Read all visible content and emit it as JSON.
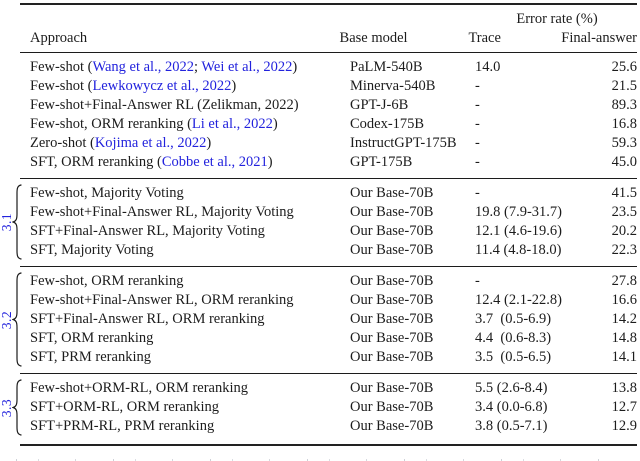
{
  "colors": {
    "link_blue": "#2222dd",
    "text": "#1c1c1c",
    "rule": "#222222"
  },
  "header": {
    "error_rate_label": "Error rate (%)",
    "columns": {
      "approach": "Approach",
      "base_model": "Base model",
      "trace": "Trace",
      "final_answer": "Final-answer"
    }
  },
  "table": {
    "groups": [
      {
        "label": null,
        "rows": [
          {
            "approach": [
              {
                "t": "Few-shot ("
              },
              {
                "t": "Wang et al., 2022",
                "link": true
              },
              {
                "t": "; "
              },
              {
                "t": "Wei et al., 2022",
                "link": true
              },
              {
                "t": ")"
              }
            ],
            "base": "PaLM-540B",
            "trace": "14.0",
            "final": "25.6"
          },
          {
            "approach": [
              {
                "t": "Few-shot ("
              },
              {
                "t": "Lewkowycz et al., 2022",
                "link": true
              },
              {
                "t": ")"
              }
            ],
            "base": "Minerva-540B",
            "trace": "-",
            "final": "21.5"
          },
          {
            "approach": [
              {
                "t": "Few-shot+Final-Answer RL (Zelikman, 2022)"
              }
            ],
            "base": "GPT-J-6B",
            "trace": "-",
            "final": "89.3"
          },
          {
            "approach": [
              {
                "t": "Few-shot, ORM reranking ("
              },
              {
                "t": "Li et al., 2022",
                "link": true
              },
              {
                "t": ")"
              }
            ],
            "base": "Codex-175B",
            "trace": "-",
            "final": "16.8"
          },
          {
            "approach": [
              {
                "t": "Zero-shot ("
              },
              {
                "t": "Kojima et al., 2022",
                "link": true
              },
              {
                "t": ")"
              }
            ],
            "base": "InstructGPT-175B",
            "trace": "-",
            "final": "59.3"
          },
          {
            "approach": [
              {
                "t": "SFT, ORM reranking ("
              },
              {
                "t": "Cobbe et al., 2021",
                "link": true
              },
              {
                "t": ")"
              }
            ],
            "base": "GPT-175B",
            "trace": "-",
            "final": "45.0"
          }
        ]
      },
      {
        "label": "3.1",
        "rows": [
          {
            "approach": [
              {
                "t": "Few-shot, Majority Voting"
              }
            ],
            "base": "Our Base-70B",
            "trace": "-",
            "final": "41.5"
          },
          {
            "approach": [
              {
                "t": "Few-shot+Final-Answer RL, Majority Voting"
              }
            ],
            "base": "Our Base-70B",
            "trace": "19.8 (7.9-31.7)",
            "final": "23.5"
          },
          {
            "approach": [
              {
                "t": "SFT+Final-Answer RL, Majority Voting"
              }
            ],
            "base": "Our Base-70B",
            "trace": "12.1 (4.6-19.6)",
            "final": "20.2"
          },
          {
            "approach": [
              {
                "t": "SFT, Majority Voting"
              }
            ],
            "base": "Our Base-70B",
            "trace": "11.4 (4.8-18.0)",
            "final": "22.3"
          }
        ]
      },
      {
        "label": "3.2",
        "rows": [
          {
            "approach": [
              {
                "t": "Few-shot, ORM reranking"
              }
            ],
            "base": "Our Base-70B",
            "trace": "-",
            "final": "27.8"
          },
          {
            "approach": [
              {
                "t": "Few-shot+Final-Answer RL, ORM reranking"
              }
            ],
            "base": "Our Base-70B",
            "trace": "12.4 (2.1-22.8)",
            "final": "16.6"
          },
          {
            "approach": [
              {
                "t": "SFT+Final-Answer RL, ORM reranking"
              }
            ],
            "base": "Our Base-70B",
            "trace": "3.7  (0.5-6.9)",
            "final": "14.2"
          },
          {
            "approach": [
              {
                "t": "SFT, ORM reranking"
              }
            ],
            "base": "Our Base-70B",
            "trace": "4.4  (0.6-8.3)",
            "final": "14.8"
          },
          {
            "approach": [
              {
                "t": "SFT, PRM reranking"
              }
            ],
            "base": "Our Base-70B",
            "trace": "3.5  (0.5-6.5)",
            "final": "14.1"
          }
        ]
      },
      {
        "label": "3.3",
        "rows": [
          {
            "approach": [
              {
                "t": "Few-shot+ORM-RL, ORM reranking"
              }
            ],
            "base": "Our Base-70B",
            "trace": "5.5 (2.6-8.4)",
            "final": "13.8"
          },
          {
            "approach": [
              {
                "t": "SFT+ORM-RL, ORM reranking"
              }
            ],
            "base": "Our Base-70B",
            "trace": "3.4 (0.0-6.8)",
            "final": "12.7"
          },
          {
            "approach": [
              {
                "t": "SFT+PRM-RL, PRM reranking"
              }
            ],
            "base": "Our Base-70B",
            "trace": "3.8 (0.5-7.1)",
            "final": "12.9"
          }
        ]
      }
    ]
  }
}
